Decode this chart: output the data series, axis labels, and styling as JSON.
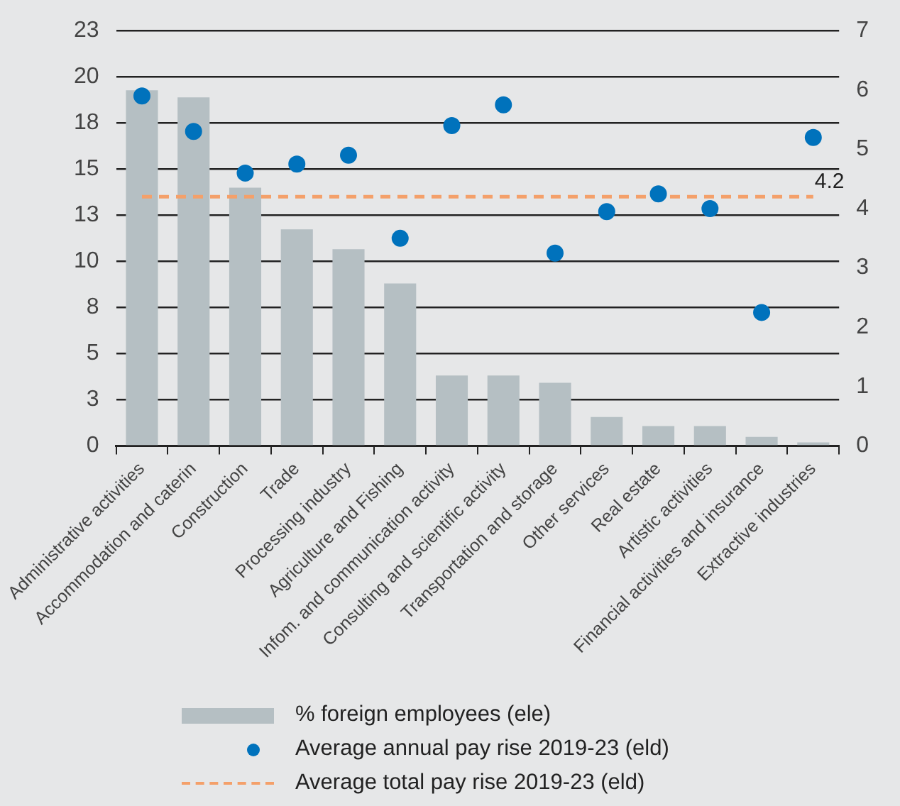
{
  "chart_data": {
    "type": "bar",
    "categories": [
      "Administrative activities",
      "Accommodation and caterin",
      "Construction",
      "Trade",
      "Processing industry",
      "Agriculture and Fishing",
      "Infom. and communication activity",
      "Consulting and scientific activity",
      "Transportation and storage",
      "Other services",
      "Real estate",
      "Artistic activities",
      "Financial activities and insurance",
      "Extractive industries"
    ],
    "series": [
      {
        "name": "% foreign employees (ele)",
        "color": "#b5bfc3",
        "values": [
          19.7,
          19.3,
          14.3,
          12.0,
          10.9,
          9.0,
          3.9,
          3.9,
          3.5,
          1.6,
          1.1,
          1.1,
          0.5,
          0.2
        ]
      },
      {
        "name": "Average annual pay rise 2019-23 (eld)",
        "type": "scatter",
        "axis": "y2",
        "color": "#0072bc",
        "marker": "circle",
        "values": [
          5.9,
          5.3,
          4.6,
          4.75,
          4.9,
          3.5,
          5.4,
          5.75,
          3.25,
          3.95,
          4.25,
          4.0,
          2.25,
          5.2
        ]
      },
      {
        "name": "Average total pay rise 2019-23 (eld)",
        "type": "line",
        "axis": "y2",
        "color": "#f4a06a",
        "marker": "none",
        "line_style": "dashed",
        "values": [
          4.2,
          4.2,
          4.2,
          4.2,
          4.2,
          4.2,
          4.2,
          4.2,
          4.2,
          4.2,
          4.2,
          4.2,
          4.2,
          4.2
        ],
        "value_labels": [
          null,
          null,
          null,
          null,
          null,
          null,
          null,
          null,
          null,
          null,
          null,
          null,
          null,
          "4.2"
        ]
      }
    ],
    "ylim": [
      0,
      23
    ],
    "yticks": [
      0,
      {
        "value": 2.5556,
        "label": "3"
      },
      {
        "value": 5.1111,
        "label": "5"
      },
      {
        "value": 7.6667,
        "label": "8"
      },
      {
        "value": 10.2222,
        "label": "10"
      },
      {
        "value": 12.7778,
        "label": "13"
      },
      {
        "value": 15.3333,
        "label": "15"
      },
      {
        "value": 17.8889,
        "label": "18"
      },
      {
        "value": 20.4444,
        "label": "20"
      },
      23
    ],
    "y2lim": [
      0,
      7
    ],
    "y2ticks": [
      0,
      1,
      2,
      3,
      4,
      5,
      6,
      7
    ],
    "grid": "y",
    "legend": "bottom"
  }
}
